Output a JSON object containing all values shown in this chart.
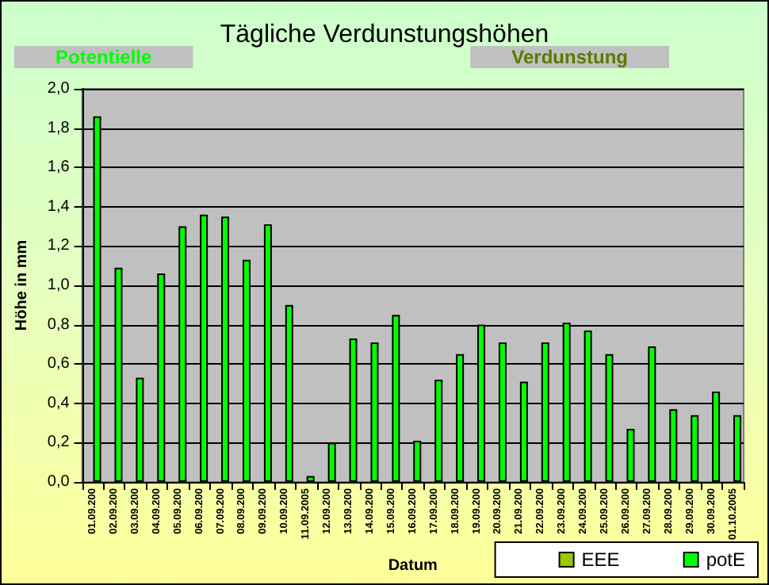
{
  "chart_data": {
    "type": "bar",
    "title": "Tägliche Verdunstungshöhen",
    "annotations": [
      "Potentielle",
      "Verdunstung"
    ],
    "xlabel": "Datum",
    "ylabel": "Höhe in mm",
    "categories": [
      "01.09.200",
      "02.09.200",
      "03.09.200",
      "04.09.200",
      "05.09.200",
      "06.09.200",
      "07.09.200",
      "08.09.200",
      "09.09.200",
      "10.09.200",
      "11.09.2005",
      "12.09.200",
      "13.09.200",
      "14.09.200",
      "15.09.200",
      "16.09.200",
      "17.09.200",
      "18.09.200",
      "19.09.200",
      "20.09.200",
      "21.09.200",
      "22.09.200",
      "23.09.200",
      "24.09.200",
      "25.09.200",
      "26.09.200",
      "27.09.200",
      "28.09.200",
      "29.09.200",
      "30.09.200",
      "01.10.2005"
    ],
    "series": [
      {
        "name": "EEE",
        "color": "#99cc00",
        "values": [
          null,
          null,
          null,
          null,
          null,
          null,
          null,
          null,
          null,
          null,
          null,
          null,
          null,
          null,
          null,
          null,
          null,
          null,
          null,
          null,
          null,
          null,
          null,
          null,
          null,
          null,
          null,
          null,
          null,
          null,
          null
        ]
      },
      {
        "name": "potE",
        "color": "#00ff00",
        "values": [
          1.86,
          1.09,
          0.53,
          1.06,
          1.3,
          1.36,
          1.35,
          1.13,
          1.31,
          0.9,
          0.03,
          0.2,
          0.73,
          0.71,
          0.85,
          0.21,
          0.52,
          0.65,
          0.8,
          0.71,
          0.51,
          0.71,
          0.81,
          0.77,
          0.65,
          0.27,
          0.69,
          0.37,
          0.34,
          0.46,
          0.34
        ]
      }
    ],
    "ylim": [
      0,
      2
    ],
    "yticks": [
      {
        "value": 0,
        "label": "0,0"
      },
      {
        "value": 0.2,
        "label": "0,2"
      },
      {
        "value": 0.4,
        "label": "0,4"
      },
      {
        "value": 0.6,
        "label": "0,6"
      },
      {
        "value": 0.8,
        "label": "0,8"
      },
      {
        "value": 1.0,
        "label": "1,0"
      },
      {
        "value": 1.2,
        "label": "1,2"
      },
      {
        "value": 1.4,
        "label": "1,4"
      },
      {
        "value": 1.6,
        "label": "1,6"
      },
      {
        "value": 1.8,
        "label": "1,8"
      },
      {
        "value": 2.0,
        "label": "2,0"
      }
    ],
    "grid": "y",
    "legend": "bottom right"
  }
}
